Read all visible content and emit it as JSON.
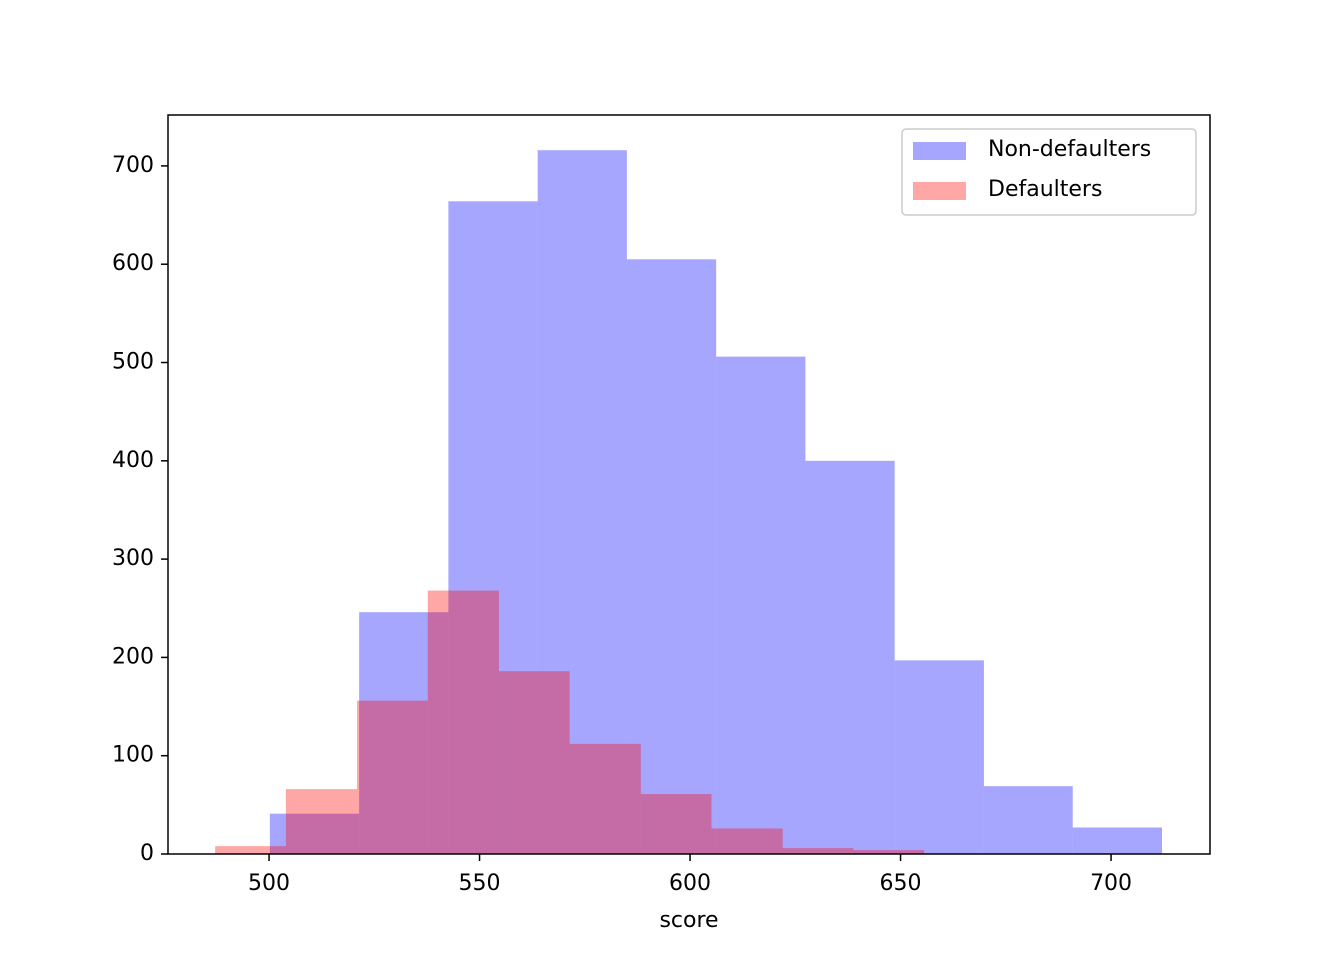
{
  "chart_data": {
    "type": "histogram",
    "x_label": "score",
    "series": [
      {
        "name": "Non-defaulters",
        "color": "#0000ff",
        "bins": [
          500.2,
          521.4,
          542.6,
          563.8,
          585.0,
          606.2,
          627.4,
          648.6,
          669.8,
          690.9,
          712.1
        ],
        "values": [
          41,
          246,
          664,
          716,
          605,
          506,
          400,
          197,
          69,
          27
        ]
      },
      {
        "name": "Defaulters",
        "color": "#ff0000",
        "bins": [
          487.2,
          504.0,
          520.9,
          537.7,
          554.6,
          571.4,
          588.3,
          605.1,
          622.0,
          638.8,
          655.6
        ],
        "values": [
          8,
          66,
          156,
          268,
          186,
          112,
          61,
          26,
          6,
          4
        ]
      }
    ],
    "alpha": 0.35,
    "xlim": [
      476.0,
      723.5
    ],
    "xticks": [
      500,
      550,
      600,
      650,
      700
    ],
    "ylim": [
      0,
      751.8
    ],
    "yticks": [
      0,
      100,
      200,
      300,
      400,
      500,
      600,
      700
    ],
    "legend": "upper right"
  }
}
